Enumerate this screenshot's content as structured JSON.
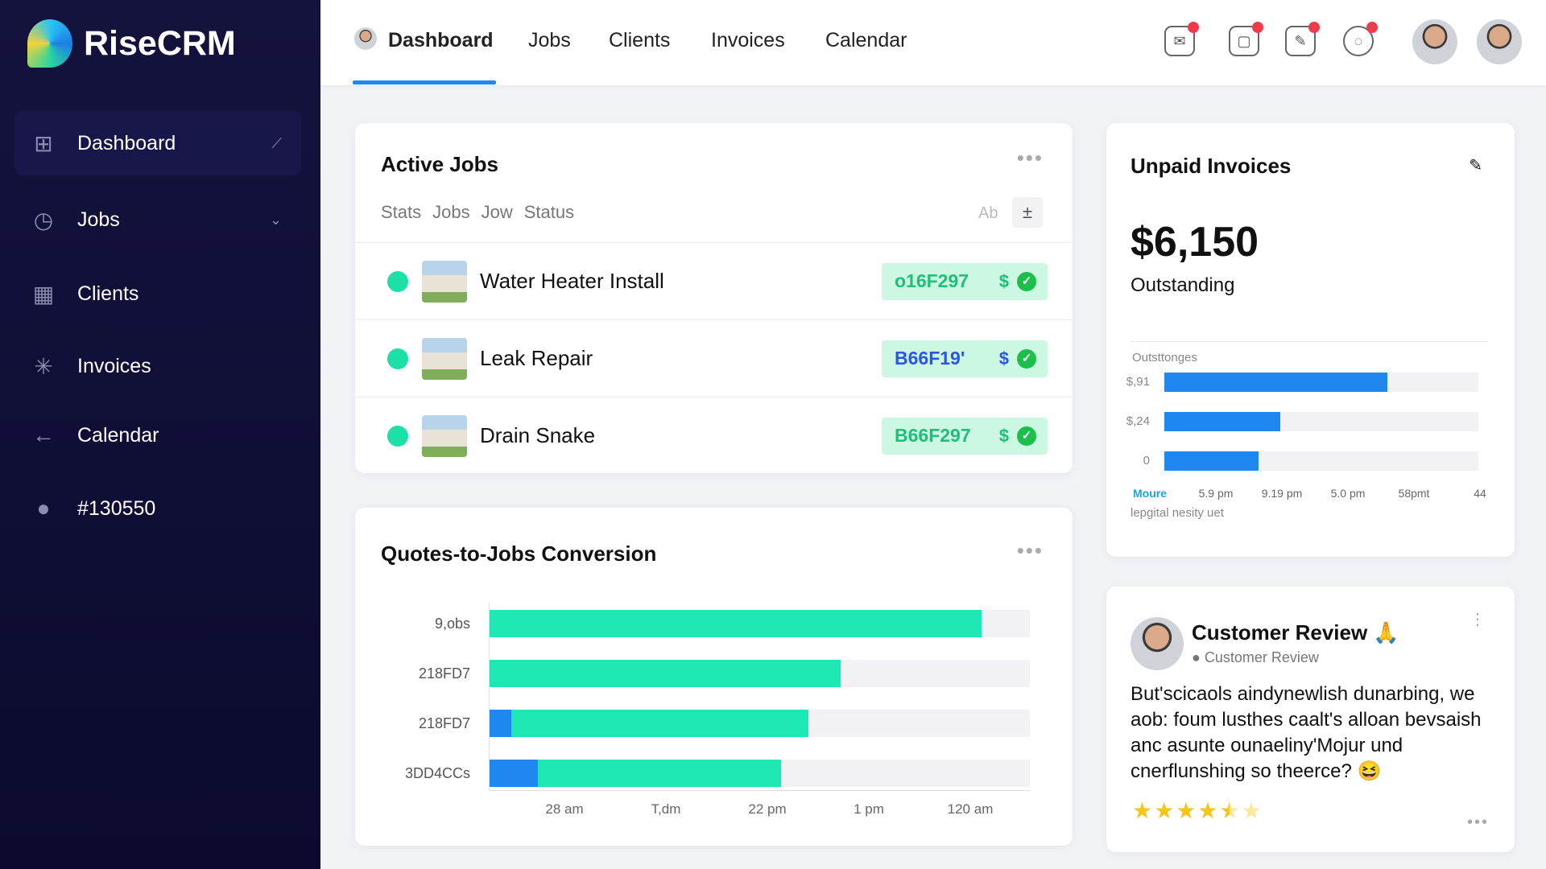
{
  "app": {
    "name": "RiseCRM"
  },
  "sidebar": {
    "items": [
      {
        "label": "Dashboard",
        "icon": "grid-icon"
      },
      {
        "label": "Jobs",
        "icon": "clock-icon"
      },
      {
        "label": "Clients",
        "icon": "calendar-icon"
      },
      {
        "label": "Invoices",
        "icon": "star-burst-icon"
      },
      {
        "label": "Calendar",
        "icon": "arrow-icon"
      },
      {
        "label": "#130550",
        "icon": "user-icon"
      }
    ]
  },
  "topnav": {
    "tabs": [
      "Dashboard",
      "Jobs",
      "Clients",
      "Invoices",
      "Calendar"
    ],
    "active": "Dashboard"
  },
  "active_jobs": {
    "title": "Active Jobs",
    "subtabs": [
      "Stats",
      "Jobs",
      "Jow",
      "Status"
    ],
    "tool_label": "Ab",
    "tool_icon": "±",
    "rows": [
      {
        "name": "Water Heater Install",
        "code": "o16F297",
        "currency": "$",
        "status": "paid"
      },
      {
        "name": "Leak Repair",
        "code": "B66F19'",
        "currency": "$",
        "status": "paid"
      },
      {
        "name": "Drain Snake",
        "code": "B66F297",
        "currency": "$",
        "status": "paid"
      }
    ]
  },
  "conversion": {
    "title": "Quotes-to-Jobs Conversion"
  },
  "chart_data": [
    {
      "type": "bar",
      "title": "Quotes-to-Jobs Conversion",
      "orientation": "horizontal",
      "stacked": true,
      "categories": [
        "9,obs",
        "218FD7",
        "218FD7",
        "3DD4CCs"
      ],
      "series": [
        {
          "color": "#1e88f0",
          "values": [
            0,
            0,
            0.04,
            0.09
          ]
        },
        {
          "color": "#1de8b4",
          "values": [
            0.91,
            0.65,
            0.55,
            0.45
          ]
        }
      ],
      "x_tick_labels": [
        "28 am",
        "T,dm",
        "22 pm",
        "1 pm",
        "120 am"
      ],
      "xlim": [
        0,
        1
      ]
    },
    {
      "type": "bar",
      "title": "Outsttonges",
      "orientation": "horizontal",
      "categories": [
        "$,91",
        "$,24",
        "0"
      ],
      "values": [
        0.71,
        0.37,
        0.3
      ],
      "color": "#1e88f0",
      "x_tick_labels": [
        "Moure",
        "5.9 pm",
        "9.19 pm",
        "5.0 pm",
        "58pmt",
        "44"
      ],
      "footer": "lepgital nesity uet",
      "xlim": [
        0,
        1
      ]
    }
  ],
  "unpaid": {
    "title": "Unpaid Invoices",
    "amount": "$6,150",
    "amount_label": "Outstanding"
  },
  "review": {
    "title": "Customer Review",
    "emoji": "🙏",
    "subtitle": "Customer Review",
    "text": "But'scicaols aindynewlish dunarbing, we aob: foum lusthes caalt's alloan bevsaish anc asunte ounaeliny'Mojur und cnerflunshing so theerce? 😆",
    "rating": 4.5,
    "rating_max": 6
  }
}
